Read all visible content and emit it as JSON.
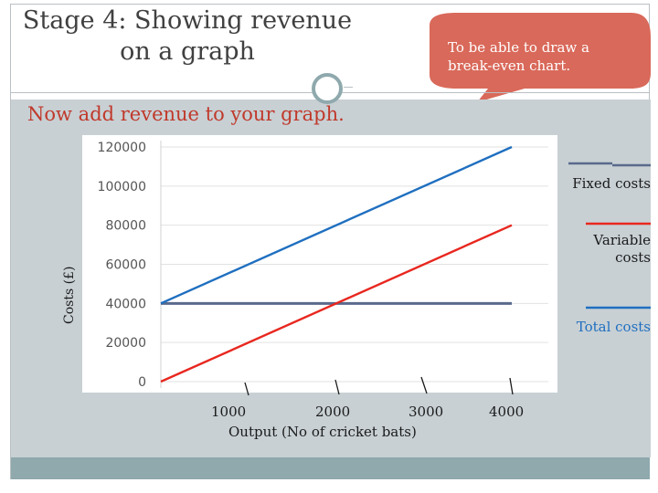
{
  "slide": {
    "title_line1": "Stage 4: Showing revenue",
    "title_line2": "on a graph",
    "bubble_line1": "To be able to draw a",
    "bubble_line2": "break-even chart.",
    "instruction": "Now add revenue to your graph.",
    "colors": {
      "bubble": "#d9695a",
      "instruction": "#c0392b",
      "content_bg": "#c8d0d4",
      "accent_bar": "#8fa9ad"
    }
  },
  "chart_data": {
    "type": "line",
    "ylabel": "Costs (£)",
    "xlabel": "Output (No of cricket bats)",
    "x": [
      0,
      4000
    ],
    "x_tick_labels": [
      "1000",
      "2000",
      "3000",
      "4000"
    ],
    "y_tick_labels": [
      "120000",
      "100000",
      "80000",
      "60000",
      "40000",
      "20000",
      "0"
    ],
    "ylim": [
      0,
      120000
    ],
    "grid": true,
    "series": [
      {
        "name": "Fixed costs",
        "values": [
          40000,
          40000
        ],
        "color": "#5a6a8c"
      },
      {
        "name": "Variable costs",
        "values": [
          0,
          80000
        ],
        "color": "#e8271f"
      },
      {
        "name": "Total costs",
        "values": [
          40000,
          120000
        ],
        "color": "#1f6fc0"
      }
    ]
  }
}
